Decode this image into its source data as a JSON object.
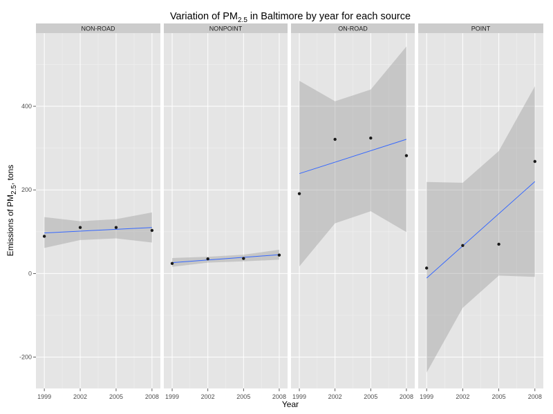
{
  "chart_data": {
    "type": "line",
    "title_prefix": "Variation of PM",
    "title_sub": "2.5",
    "title_suffix": " in Baltimore by year for each source",
    "xlabel": "Year",
    "ylabel_prefix": "Emissions of PM",
    "ylabel_sub": "2.5",
    "ylabel_suffix": ", tons",
    "x_ticks": [
      "1999",
      "2002",
      "2005",
      "2008"
    ],
    "y_ticks": [
      -200,
      0,
      200,
      400
    ],
    "xlim": [
      1998.3,
      2008.7
    ],
    "ylim": [
      -275,
      575
    ],
    "grid": true,
    "facets": [
      {
        "name": "NON-ROAD",
        "points": [
          [
            1999,
            89
          ],
          [
            2002,
            110
          ],
          [
            2005,
            110
          ],
          [
            2008,
            103
          ]
        ],
        "fit": [
          [
            1999,
            97
          ],
          [
            2008,
            110
          ]
        ],
        "band": {
          "x": [
            1999,
            2002,
            2005,
            2008
          ],
          "upper": [
            135,
            125,
            130,
            146
          ],
          "lower": [
            61,
            80,
            84,
            74
          ]
        }
      },
      {
        "name": "NONPOINT",
        "points": [
          [
            1999,
            24
          ],
          [
            2002,
            35
          ],
          [
            2005,
            36
          ],
          [
            2008,
            44
          ]
        ],
        "fit": [
          [
            1999,
            26
          ],
          [
            2008,
            45
          ]
        ],
        "band": {
          "x": [
            1999,
            2002,
            2005,
            2008
          ],
          "upper": [
            37,
            40,
            45,
            57
          ],
          "lower": [
            16,
            26,
            29,
            33
          ]
        }
      },
      {
        "name": "ON-ROAD",
        "points": [
          [
            1999,
            191
          ],
          [
            2002,
            321
          ],
          [
            2005,
            324
          ],
          [
            2008,
            282
          ]
        ],
        "fit": [
          [
            1999,
            239
          ],
          [
            2008,
            321
          ]
        ],
        "band": {
          "x": [
            1999,
            2002,
            2005,
            2008
          ],
          "upper": [
            461,
            412,
            440,
            543
          ],
          "lower": [
            17,
            120,
            149,
            99
          ]
        }
      },
      {
        "name": "POINT",
        "points": [
          [
            1999,
            13
          ],
          [
            2002,
            67
          ],
          [
            2005,
            70
          ],
          [
            2008,
            268
          ]
        ],
        "fit": [
          [
            1999,
            -11
          ],
          [
            2008,
            220
          ]
        ],
        "band": {
          "x": [
            1999,
            2002,
            2005,
            2008
          ],
          "upper": [
            219,
            217,
            293,
            448
          ],
          "lower": [
            -237,
            -82,
            -5,
            -8
          ]
        }
      }
    ],
    "colors": {
      "panel_bg": "#e5e5e5",
      "grid_major": "#ffffff",
      "grid_minor": "#f2f2f2",
      "strip_bg": "#cccccc",
      "point": "#1a1a1a",
      "fit_line": "#3366ff",
      "band": "#999999"
    }
  }
}
